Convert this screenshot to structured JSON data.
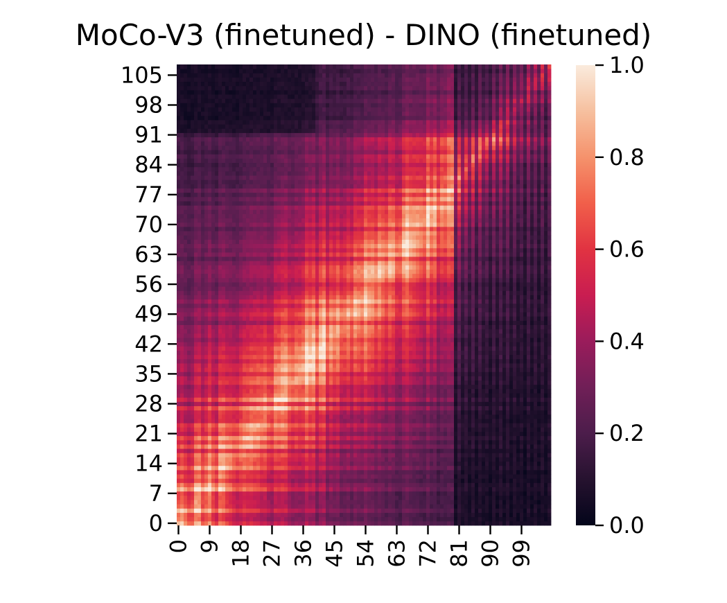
{
  "chart_data": {
    "type": "heatmap",
    "title": "MoCo-V3 (finetuned) - DINO (finetuned)",
    "xlabel": "",
    "ylabel": "",
    "n_x": 108,
    "n_y": 108,
    "x_ticks": [
      "0",
      "9",
      "18",
      "27",
      "36",
      "45",
      "54",
      "63",
      "72",
      "81",
      "90",
      "99"
    ],
    "x_tick_values": [
      0,
      9,
      18,
      27,
      36,
      45,
      54,
      63,
      72,
      81,
      90,
      99
    ],
    "y_ticks": [
      "0",
      "7",
      "14",
      "21",
      "28",
      "35",
      "42",
      "49",
      "56",
      "63",
      "70",
      "77",
      "84",
      "91",
      "98",
      "105"
    ],
    "y_tick_values": [
      0,
      7,
      14,
      21,
      28,
      35,
      42,
      49,
      56,
      63,
      70,
      77,
      84,
      91,
      98,
      105
    ],
    "y_origin": "bottom",
    "value_range": [
      0,
      1
    ],
    "colormap": "rocket",
    "colorbar": {
      "ticks": [
        "0.0",
        "0.2",
        "0.4",
        "0.6",
        "0.8",
        "1.0"
      ],
      "tick_values": [
        0,
        0.2,
        0.4,
        0.6,
        0.8,
        1.0
      ]
    },
    "pattern": {
      "description_of_values": "similarity is high near the diagonal for low-to-mid indices and decays with distance; columns beyond about 80 are dark",
      "diagonal_peak": 0.85,
      "off_diagonal_floor": 0.1,
      "dark_columns_from": 80,
      "dark_rows_from": 92
    }
  },
  "colors": {
    "background": "#ffffff",
    "text": "#000000"
  }
}
